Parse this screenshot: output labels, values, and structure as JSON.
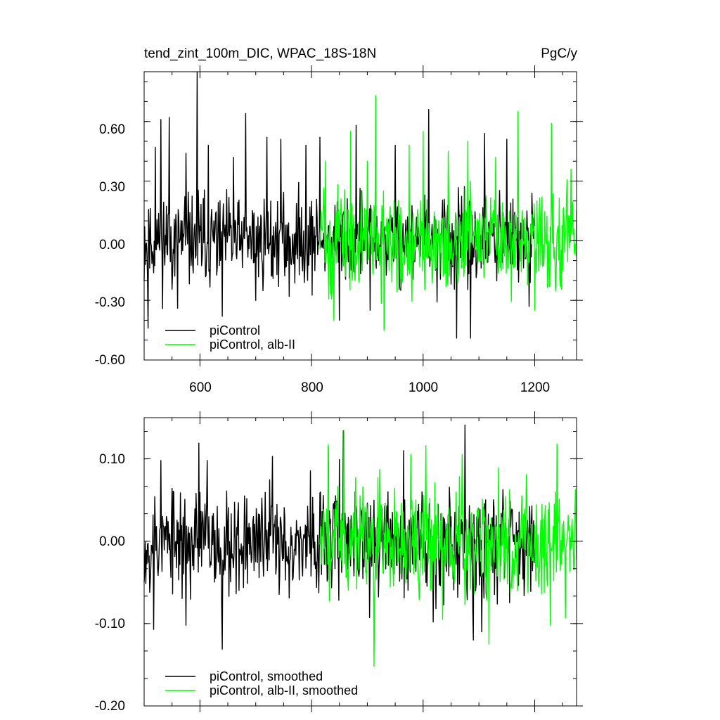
{
  "chart_data": [
    {
      "type": "line",
      "title": "tend_zint_100m_DIC, WPAC_18S-18N",
      "units": "PgC/y",
      "xlim": [
        500,
        1275
      ],
      "ylim": [
        -0.6,
        0.85
      ],
      "xticks": [
        600,
        800,
        1000,
        1200
      ],
      "xtick_labels": [
        "600",
        "800",
        "1000",
        "1200"
      ],
      "yticks": [
        -0.6,
        -0.3,
        0.0,
        0.3,
        0.6
      ],
      "ytick_labels": [
        "-0.60",
        "-0.30",
        "0.00",
        "0.30",
        "0.60"
      ],
      "legend_position": "bottom-left",
      "series": [
        {
          "name": "piControl",
          "color": "#000000",
          "x_start": 500,
          "x_end": 1200,
          "amplitude": 0.16,
          "spike_x": [
            507,
            520,
            530,
            545,
            560,
            575,
            595,
            615,
            640,
            660,
            682,
            700,
            720,
            745,
            760,
            790,
            815,
            850,
            880,
            905,
            950,
            1010,
            1060,
            1085,
            1110,
            1150,
            1190
          ],
          "spike_y": [
            -0.44,
            0.47,
            0.61,
            0.62,
            -0.34,
            0.44,
            0.88,
            0.48,
            -0.38,
            0.42,
            0.64,
            -0.3,
            0.52,
            0.51,
            -0.28,
            0.48,
            0.52,
            -0.4,
            0.58,
            -0.35,
            0.48,
            0.66,
            -0.49,
            -0.49,
            0.54,
            0.51,
            -0.33
          ]
        },
        {
          "name": "piControl, alb-II",
          "color": "#00ff00",
          "x_start": 815,
          "x_end": 1275,
          "amplitude": 0.17,
          "spike_x": [
            825,
            840,
            870,
            900,
            915,
            930,
            975,
            1000,
            1045,
            1080,
            1130,
            1170,
            1200,
            1230,
            1265
          ],
          "spike_y": [
            0.4,
            -0.4,
            0.55,
            0.4,
            0.73,
            -0.45,
            0.48,
            0.55,
            0.45,
            0.5,
            0.42,
            0.65,
            -0.35,
            0.59,
            0.36
          ]
        }
      ]
    },
    {
      "type": "line",
      "title": "",
      "xlim": [
        500,
        1275
      ],
      "ylim": [
        -0.2,
        0.15
      ],
      "xticks": [
        600,
        800,
        1000,
        1200
      ],
      "yticks": [
        -0.2,
        -0.1,
        0.0,
        0.1
      ],
      "ytick_labels": [
        "-0.20",
        "-0.10",
        "0.00",
        "0.10"
      ],
      "legend_position": "bottom-left",
      "series": [
        {
          "name": "piControl, smoothed",
          "color": "#000000",
          "x_start": 500,
          "x_end": 1200,
          "amplitude": 0.045,
          "spike_x": [
            517,
            530,
            575,
            598,
            613,
            640,
            730,
            830,
            850,
            857,
            965,
            1018,
            1075,
            1090,
            1105
          ],
          "spike_y": [
            -0.107,
            0.098,
            -0.102,
            0.119,
            0.098,
            -0.131,
            0.103,
            0.115,
            0.099,
            0.134,
            0.11,
            -0.098,
            0.141,
            -0.12,
            -0.11
          ]
        },
        {
          "name": "piControl, alb-II, smoothed",
          "color": "#00ff00",
          "x_start": 815,
          "x_end": 1275,
          "amplitude": 0.045,
          "spike_x": [
            830,
            858,
            912,
            919,
            978,
            1005,
            1035,
            1070,
            1118,
            1135,
            1185,
            1228,
            1240,
            1255
          ],
          "spike_y": [
            0.117,
            0.134,
            -0.152,
            0.077,
            0.105,
            0.116,
            -0.095,
            0.105,
            -0.125,
            0.089,
            0.081,
            -0.102,
            0.118,
            -0.093
          ]
        }
      ]
    }
  ]
}
